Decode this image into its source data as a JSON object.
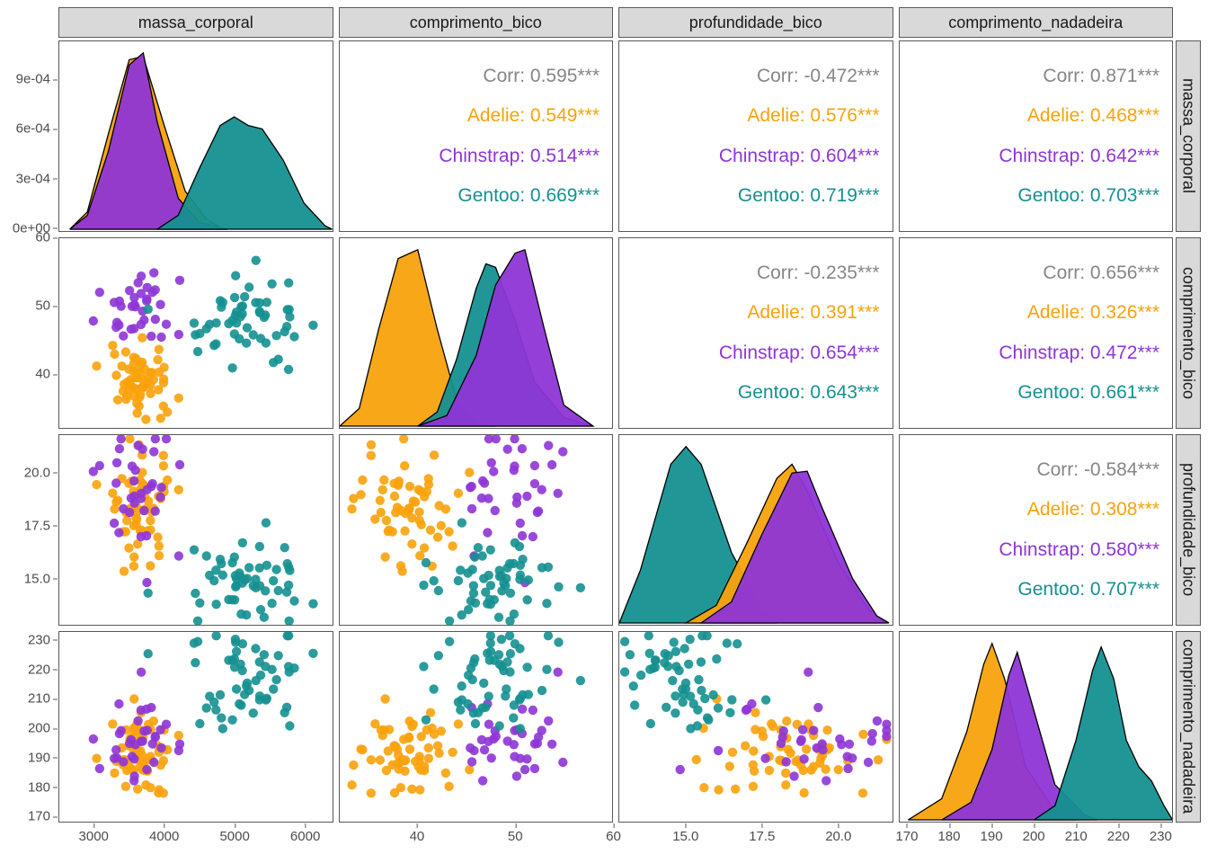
{
  "colors": {
    "adelie": "#F8A20C",
    "chinstrap": "#8E35D6",
    "gentoo": "#159090",
    "corr": "#868686",
    "panel_border": "#595959",
    "strip_bg": "#d9d9d9",
    "point_opacity": 0.9,
    "fill_opacity": 0.95,
    "stroke": "#000000"
  },
  "typography": {
    "strip_fontsize": 18,
    "axis_fontsize": 15,
    "corr_fontsize": 21
  },
  "vars": [
    "massa_corporal",
    "comprimento_bico",
    "profundidade_bico",
    "comprimento_nadadeira"
  ],
  "ranges": {
    "massa_corporal": {
      "min": 2500,
      "max": 6400
    },
    "comprimento_bico": {
      "min": 32,
      "max": 60
    },
    "profundidade_bico": {
      "min": 12.8,
      "max": 21.8
    },
    "comprimento_nadadeira": {
      "min": 168,
      "max": 233
    }
  },
  "axis_ticks": {
    "massa_corporal": {
      "y": [
        "0e+00",
        "3e-04",
        "6e-04",
        "9e-04"
      ],
      "x": [
        "3000",
        "4000",
        "5000",
        "6000"
      ]
    },
    "comprimento_bico": {
      "y": [
        "40",
        "50",
        "60"
      ],
      "x": [
        "40",
        "50",
        "60"
      ]
    },
    "profundidade_bico": {
      "y": [
        "15.0",
        "17.5",
        "20.0"
      ],
      "x": [
        "15.0",
        "17.5",
        "20.0"
      ]
    },
    "comprimento_nadadeira": {
      "y": [
        "170",
        "180",
        "190",
        "200",
        "210",
        "220",
        "230"
      ],
      "x": [
        "170",
        "180",
        "190",
        "200",
        "210",
        "220",
        "230"
      ]
    }
  },
  "axis_tick_values": {
    "massa_corporal": {
      "y": [
        0,
        3,
        6,
        9
      ],
      "ymax": 11,
      "x": [
        3000,
        4000,
        5000,
        6000
      ]
    },
    "comprimento_bico": {
      "y": [
        40,
        50,
        60
      ],
      "x": [
        40,
        50,
        60
      ]
    },
    "profundidade_bico": {
      "y": [
        15.0,
        17.5,
        20.0
      ],
      "x": [
        15.0,
        17.5,
        20.0
      ]
    },
    "comprimento_nadadeira": {
      "y": [
        170,
        180,
        190,
        200,
        210,
        220,
        230
      ],
      "x": [
        170,
        180,
        190,
        200,
        210,
        220,
        230
      ]
    }
  },
  "correlations": {
    "r0c1": {
      "corr": "Corr: 0.595***",
      "adelie": "Adelie: 0.549***",
      "chinstrap": "Chinstrap: 0.514***",
      "gentoo": "Gentoo: 0.669***"
    },
    "r0c2": {
      "corr": "Corr: -0.472***",
      "adelie": "Adelie: 0.576***",
      "chinstrap": "Chinstrap: 0.604***",
      "gentoo": "Gentoo: 0.719***"
    },
    "r0c3": {
      "corr": "Corr: 0.871***",
      "adelie": "Adelie: 0.468***",
      "chinstrap": "Chinstrap: 0.642***",
      "gentoo": "Gentoo: 0.703***"
    },
    "r1c2": {
      "corr": "Corr: -0.235***",
      "adelie": "Adelie: 0.391***",
      "chinstrap": "Chinstrap: 0.654***",
      "gentoo": "Gentoo: 0.643***"
    },
    "r1c3": {
      "corr": "Corr: 0.656***",
      "adelie": "Adelie: 0.326***",
      "chinstrap": "Chinstrap: 0.472***",
      "gentoo": "Gentoo: 0.661***"
    },
    "r2c3": {
      "corr": "Corr: -0.584***",
      "adelie": "Adelie: 0.308***",
      "chinstrap": "Chinstrap: 0.580***",
      "gentoo": "Gentoo: 0.707***"
    }
  },
  "densities": {
    "massa_corporal": {
      "adelie": [
        [
          2650,
          0
        ],
        [
          2900,
          0.1
        ],
        [
          3200,
          0.55
        ],
        [
          3500,
          0.98
        ],
        [
          3700,
          1.0
        ],
        [
          4000,
          0.6
        ],
        [
          4300,
          0.22
        ],
        [
          4600,
          0.06
        ],
        [
          4800,
          0.01
        ],
        [
          4900,
          0
        ]
      ],
      "chinstrap": [
        [
          2650,
          0
        ],
        [
          2900,
          0.08
        ],
        [
          3200,
          0.45
        ],
        [
          3500,
          0.95
        ],
        [
          3700,
          1.02
        ],
        [
          3900,
          0.62
        ],
        [
          4200,
          0.18
        ],
        [
          4500,
          0.04
        ],
        [
          4800,
          0.01
        ],
        [
          4900,
          0
        ]
      ],
      "gentoo": [
        [
          3900,
          0
        ],
        [
          4200,
          0.08
        ],
        [
          4500,
          0.35
        ],
        [
          4800,
          0.6
        ],
        [
          5000,
          0.65
        ],
        [
          5200,
          0.6
        ],
        [
          5400,
          0.58
        ],
        [
          5700,
          0.4
        ],
        [
          6000,
          0.15
        ],
        [
          6300,
          0.02
        ],
        [
          6400,
          0
        ]
      ]
    },
    "comprimento_bico": {
      "adelie": [
        [
          32,
          0
        ],
        [
          34,
          0.1
        ],
        [
          36,
          0.55
        ],
        [
          38,
          0.95
        ],
        [
          40,
          1.0
        ],
        [
          42,
          0.55
        ],
        [
          44,
          0.15
        ],
        [
          46,
          0.03
        ],
        [
          48,
          0
        ]
      ],
      "chinstrap": [
        [
          40,
          0
        ],
        [
          43,
          0.06
        ],
        [
          46,
          0.4
        ],
        [
          48,
          0.8
        ],
        [
          50,
          0.98
        ],
        [
          51,
          1.0
        ],
        [
          53,
          0.55
        ],
        [
          55,
          0.12
        ],
        [
          58,
          0
        ]
      ],
      "gentoo": [
        [
          40,
          0
        ],
        [
          42,
          0.08
        ],
        [
          44,
          0.38
        ],
        [
          46,
          0.78
        ],
        [
          47,
          0.92
        ],
        [
          48,
          0.9
        ],
        [
          50,
          0.6
        ],
        [
          52,
          0.25
        ],
        [
          55,
          0.05
        ],
        [
          58,
          0
        ]
      ]
    },
    "profundidade_bico": {
      "gentoo": [
        [
          12.8,
          0
        ],
        [
          13.5,
          0.3
        ],
        [
          14.5,
          0.9
        ],
        [
          15.0,
          1.0
        ],
        [
          15.5,
          0.9
        ],
        [
          16.5,
          0.4
        ],
        [
          17.5,
          0.08
        ],
        [
          18.0,
          0
        ]
      ],
      "adelie": [
        [
          15.0,
          0
        ],
        [
          16.0,
          0.1
        ],
        [
          17.0,
          0.45
        ],
        [
          18.0,
          0.82
        ],
        [
          18.5,
          0.9
        ],
        [
          19.0,
          0.75
        ],
        [
          20.0,
          0.35
        ],
        [
          21.0,
          0.08
        ],
        [
          21.6,
          0
        ]
      ],
      "chinstrap": [
        [
          15.5,
          0
        ],
        [
          16.5,
          0.12
        ],
        [
          17.5,
          0.5
        ],
        [
          18.5,
          0.85
        ],
        [
          19.0,
          0.86
        ],
        [
          19.5,
          0.65
        ],
        [
          20.5,
          0.25
        ],
        [
          21.3,
          0.04
        ],
        [
          21.7,
          0
        ]
      ]
    },
    "comprimento_nadadeira": {
      "adelie": [
        [
          170,
          0
        ],
        [
          178,
          0.12
        ],
        [
          184,
          0.5
        ],
        [
          188,
          0.88
        ],
        [
          190,
          1.0
        ],
        [
          193,
          0.8
        ],
        [
          198,
          0.3
        ],
        [
          205,
          0.05
        ],
        [
          210,
          0
        ]
      ],
      "chinstrap": [
        [
          178,
          0
        ],
        [
          185,
          0.1
        ],
        [
          190,
          0.4
        ],
        [
          194,
          0.82
        ],
        [
          196,
          0.95
        ],
        [
          199,
          0.7
        ],
        [
          205,
          0.2
        ],
        [
          212,
          0.03
        ],
        [
          215,
          0
        ]
      ],
      "gentoo": [
        [
          200,
          0
        ],
        [
          205,
          0.08
        ],
        [
          210,
          0.45
        ],
        [
          214,
          0.85
        ],
        [
          216,
          0.98
        ],
        [
          219,
          0.8
        ],
        [
          222,
          0.45
        ],
        [
          225,
          0.3
        ],
        [
          228,
          0.22
        ],
        [
          231,
          0.08
        ],
        [
          233,
          0
        ]
      ]
    }
  },
  "species_params": {
    "adelie": {
      "n": 60,
      "massa_corporal": [
        3400,
        3900
      ],
      "comprimento_bico": [
        36,
        42
      ],
      "profundidade_bico": [
        17.0,
        20.0
      ],
      "comprimento_nadadeira": [
        182,
        198
      ]
    },
    "chinstrap": {
      "n": 35,
      "massa_corporal": [
        3300,
        4000
      ],
      "comprimento_bico": [
        46,
        52
      ],
      "profundidade_bico": [
        17.5,
        20.5
      ],
      "comprimento_nadadeira": [
        188,
        205
      ]
    },
    "gentoo": {
      "n": 55,
      "massa_corporal": [
        4600,
        5700
      ],
      "comprimento_bico": [
        44,
        51
      ],
      "profundidade_bico": [
        13.8,
        16.2
      ],
      "comprimento_nadadeira": [
        208,
        228
      ]
    }
  },
  "point_radius": 5.2
}
